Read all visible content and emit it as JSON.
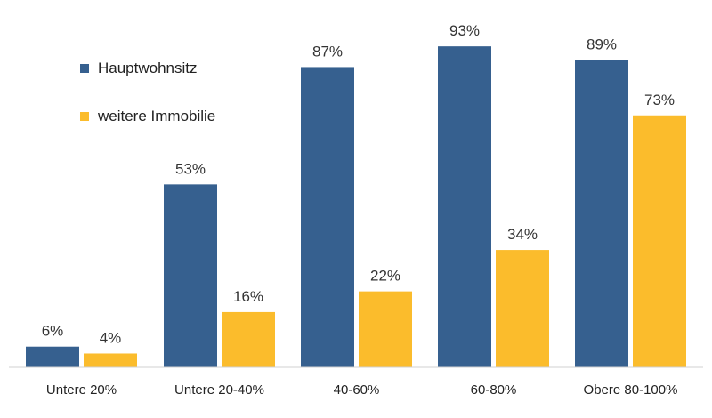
{
  "chart_data": {
    "type": "bar",
    "title": "",
    "xlabel": "",
    "ylabel": "",
    "ylim": [
      0,
      100
    ],
    "grid": false,
    "legend_position": "top-left",
    "categories": [
      "Untere 20%",
      "Untere 20-40%",
      "40-60%",
      "60-80%",
      "Obere 80-100%"
    ],
    "series": [
      {
        "name": "Hauptwohnsitz",
        "color": "#36608F",
        "values": [
          6,
          53,
          87,
          93,
          89
        ],
        "labels": [
          "6%",
          "53%",
          "87%",
          "93%",
          "89%"
        ]
      },
      {
        "name": "weitere Immobilie",
        "color": "#FBBC2C",
        "values": [
          4,
          16,
          22,
          34,
          73
        ],
        "labels": [
          "4%",
          "16%",
          "22%",
          "34%",
          "73%"
        ]
      }
    ]
  },
  "legend": {
    "items": [
      {
        "label": "Hauptwohnsitz",
        "color": "#36608F"
      },
      {
        "label": "weitere Immobilie",
        "color": "#FBBC2C"
      }
    ]
  },
  "colors": {
    "axis": "#D0D0D0"
  }
}
